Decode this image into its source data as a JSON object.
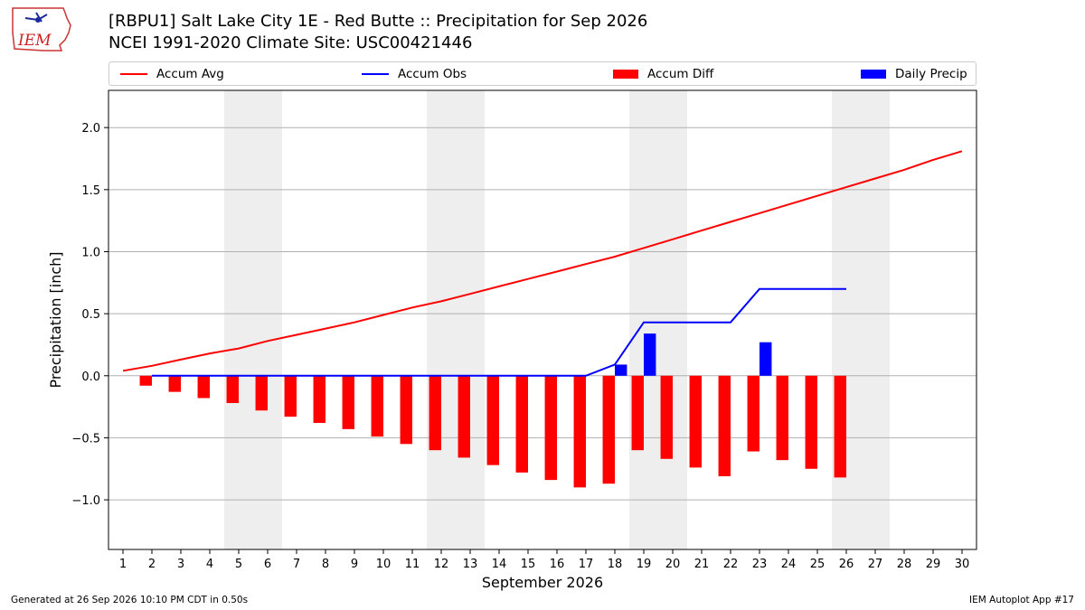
{
  "logo": {
    "text": "IEM"
  },
  "title": {
    "line1": "[RBPU1] Salt Lake City 1E - Red Butte :: Precipitation for Sep 2026",
    "line2": "NCEI 1991-2020 Climate Site: USC00421446"
  },
  "legend": [
    {
      "label": "Accum Avg",
      "kind": "line",
      "color": "#ff0000"
    },
    {
      "label": "Accum Obs",
      "kind": "line",
      "color": "#0000ff"
    },
    {
      "label": "Accum Diff",
      "kind": "box",
      "color": "#ff0000"
    },
    {
      "label": "Daily Precip",
      "kind": "box",
      "color": "#0000ff"
    }
  ],
  "chart_data": {
    "type": "bar",
    "xlabel": "September 2026",
    "ylabel": "Precipitation [inch]",
    "xlim": [
      0.5,
      30.5
    ],
    "ylim": [
      -1.4,
      2.3
    ],
    "yticks": [
      -1.0,
      -0.5,
      0.0,
      0.5,
      1.0,
      1.5,
      2.0
    ],
    "ytick_labels": [
      "−1.0",
      "−0.5",
      "0.0",
      "0.5",
      "1.0",
      "1.5",
      "2.0"
    ],
    "days": [
      1,
      2,
      3,
      4,
      5,
      6,
      7,
      8,
      9,
      10,
      11,
      12,
      13,
      14,
      15,
      16,
      17,
      18,
      19,
      20,
      21,
      22,
      23,
      24,
      25,
      26,
      27,
      28,
      29,
      30
    ],
    "weekend_shading": [
      [
        5,
        6
      ],
      [
        12,
        13
      ],
      [
        19,
        20
      ],
      [
        26,
        27
      ]
    ],
    "grid": true,
    "series": [
      {
        "name": "Accum Avg",
        "type": "line",
        "color": "#ff0000",
        "x": [
          1,
          2,
          3,
          4,
          5,
          6,
          7,
          8,
          9,
          10,
          11,
          12,
          13,
          14,
          15,
          16,
          17,
          18,
          19,
          20,
          21,
          22,
          23,
          24,
          25,
          26,
          27,
          28,
          29,
          30
        ],
        "values": [
          0.04,
          0.08,
          0.13,
          0.18,
          0.22,
          0.28,
          0.33,
          0.38,
          0.43,
          0.49,
          0.55,
          0.6,
          0.66,
          0.72,
          0.78,
          0.84,
          0.9,
          0.96,
          1.03,
          1.1,
          1.17,
          1.24,
          1.31,
          1.38,
          1.45,
          1.52,
          1.59,
          1.66,
          1.74,
          1.81
        ]
      },
      {
        "name": "Accum Obs",
        "type": "line",
        "color": "#0000ff",
        "x": [
          2,
          3,
          4,
          5,
          6,
          7,
          8,
          9,
          10,
          11,
          12,
          13,
          14,
          15,
          16,
          17,
          18,
          19,
          20,
          21,
          22,
          23,
          24,
          25,
          26
        ],
        "values": [
          0,
          0,
          0,
          0,
          0,
          0,
          0,
          0,
          0,
          0,
          0,
          0,
          0,
          0,
          0,
          0,
          0.09,
          0.43,
          0.43,
          0.43,
          0.43,
          0.7,
          0.7,
          0.7,
          0.7
        ]
      },
      {
        "name": "Accum Diff",
        "type": "bar",
        "color": "#ff0000",
        "x": [
          2,
          3,
          4,
          5,
          6,
          7,
          8,
          9,
          10,
          11,
          12,
          13,
          14,
          15,
          16,
          17,
          18,
          19,
          20,
          21,
          22,
          23,
          24,
          25,
          26
        ],
        "values": [
          -0.08,
          -0.13,
          -0.18,
          -0.22,
          -0.28,
          -0.33,
          -0.38,
          -0.43,
          -0.49,
          -0.55,
          -0.6,
          -0.66,
          -0.72,
          -0.78,
          -0.84,
          -0.9,
          -0.87,
          -0.6,
          -0.67,
          -0.74,
          -0.81,
          -0.61,
          -0.68,
          -0.75,
          -0.82
        ]
      },
      {
        "name": "Daily Precip",
        "type": "bar",
        "color": "#0000ff",
        "x": [
          18,
          19,
          23
        ],
        "values": [
          0.09,
          0.34,
          0.27
        ]
      }
    ]
  },
  "footer": {
    "left": "Generated at 26 Sep 2026 10:10 PM CDT in 0.50s",
    "right": "IEM Autoplot App #17"
  }
}
